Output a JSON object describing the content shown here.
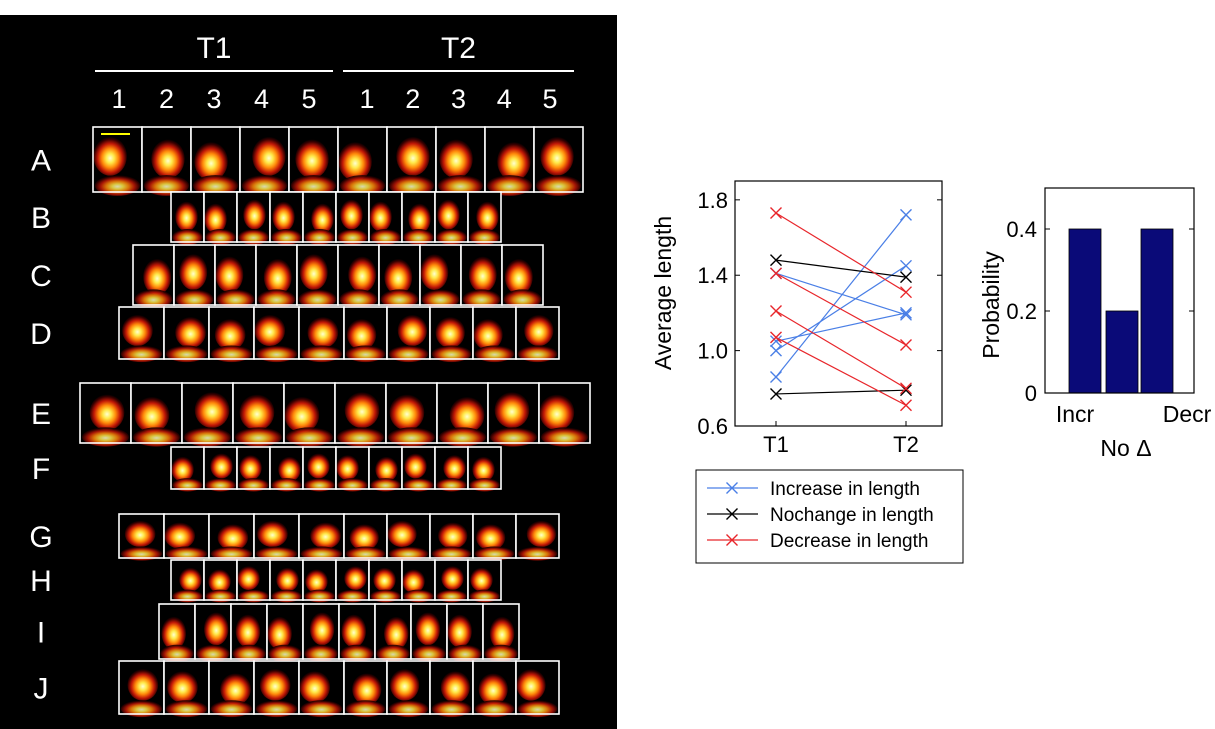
{
  "colors": {
    "panel_bg": "#000000",
    "frame": "#ffffff",
    "scale_bar": "#ffff00",
    "increase": "#4a7fe6",
    "nochange": "#000000",
    "decrease": "#e8262b",
    "bar_fill": "#0a0a78"
  },
  "image_panel": {
    "groups": [
      {
        "label": "T1",
        "columns": [
          "1",
          "2",
          "3",
          "4",
          "5"
        ]
      },
      {
        "label": "T2",
        "columns": [
          "1",
          "2",
          "3",
          "4",
          "5"
        ]
      }
    ],
    "rows": [
      {
        "label": "A",
        "frames": 10
      },
      {
        "label": "B",
        "frames": 10
      },
      {
        "label": "C",
        "frames": 10
      },
      {
        "label": "D",
        "frames": 10
      },
      {
        "label": "E",
        "frames": 10
      },
      {
        "label": "F",
        "frames": 10
      },
      {
        "label": "G",
        "frames": 10
      },
      {
        "label": "H",
        "frames": 10
      },
      {
        "label": "I",
        "frames": 10
      },
      {
        "label": "J",
        "frames": 10
      }
    ]
  },
  "chart_data": [
    {
      "type": "line",
      "title": "",
      "xlabel": "",
      "ylabel": "Average length",
      "categories": [
        "T1",
        "T2"
      ],
      "ylim": [
        0.6,
        1.9
      ],
      "yticks": [
        "0.6",
        "1.0",
        "1.4",
        "1.8"
      ],
      "grid": false,
      "legend": "below",
      "legend_entries": [
        {
          "label": "Increase in length",
          "group": "increase"
        },
        {
          "label": "Nochange in length",
          "group": "nochange"
        },
        {
          "label": "Decrease in length",
          "group": "decrease"
        }
      ],
      "series": [
        {
          "group": "increase",
          "values": [
            0.86,
            1.72
          ]
        },
        {
          "group": "increase",
          "values": [
            1.0,
            1.45
          ]
        },
        {
          "group": "increase",
          "values": [
            1.05,
            1.2
          ]
        },
        {
          "group": "increase",
          "values": [
            1.41,
            1.19
          ]
        },
        {
          "group": "nochange",
          "values": [
            1.48,
            1.39
          ]
        },
        {
          "group": "nochange",
          "values": [
            0.77,
            0.79
          ]
        },
        {
          "group": "decrease",
          "values": [
            1.73,
            1.31
          ]
        },
        {
          "group": "decrease",
          "values": [
            1.41,
            1.03
          ]
        },
        {
          "group": "decrease",
          "values": [
            1.21,
            0.8
          ]
        },
        {
          "group": "decrease",
          "values": [
            1.07,
            0.71
          ]
        }
      ]
    },
    {
      "type": "bar",
      "title": "",
      "xlabel": "",
      "ylabel": "Probability",
      "categories": [
        "Incr",
        "No Δ",
        "Decr"
      ],
      "values": [
        0.4,
        0.2,
        0.4
      ],
      "ylim": [
        0,
        0.5
      ],
      "yticks": [
        "0",
        "0.2",
        "0.4"
      ]
    }
  ]
}
